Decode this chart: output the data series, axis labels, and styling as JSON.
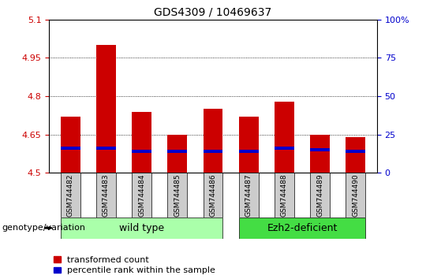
{
  "title": "GDS4309 / 10469637",
  "samples": [
    "GSM744482",
    "GSM744483",
    "GSM744484",
    "GSM744485",
    "GSM744486",
    "GSM744487",
    "GSM744488",
    "GSM744489",
    "GSM744490"
  ],
  "transformed_count": [
    4.72,
    5.0,
    4.74,
    4.65,
    4.75,
    4.72,
    4.78,
    4.65,
    4.64
  ],
  "percentile_rank": [
    16,
    16,
    14,
    14,
    14,
    14,
    16,
    15,
    14
  ],
  "bar_bottom": 4.5,
  "ylim": [
    4.5,
    5.1
  ],
  "right_ylim": [
    0,
    100
  ],
  "right_yticks": [
    0,
    25,
    50,
    75,
    100
  ],
  "right_yticklabels": [
    "0",
    "25",
    "50",
    "75",
    "100%"
  ],
  "left_yticks": [
    4.5,
    4.65,
    4.8,
    4.95,
    5.1
  ],
  "left_yticklabels": [
    "4.5",
    "4.65",
    "4.8",
    "4.95",
    "5.1"
  ],
  "red_color": "#cc0000",
  "blue_color": "#0000cc",
  "grid_color": "#000000",
  "left_tick_color": "#cc0000",
  "right_tick_color": "#0000cc",
  "bar_width": 0.55,
  "groups": [
    {
      "label": "wild type",
      "samples": [
        "GSM744482",
        "GSM744483",
        "GSM744484",
        "GSM744485",
        "GSM744486"
      ],
      "color": "#aaffaa"
    },
    {
      "label": "Ezh2-deficient",
      "samples": [
        "GSM744487",
        "GSM744488",
        "GSM744489",
        "GSM744490"
      ],
      "color": "#44dd44"
    }
  ],
  "xlabel_group": "genotype/variation",
  "legend_items": [
    {
      "color": "#cc0000",
      "label": "transformed count"
    },
    {
      "color": "#0000cc",
      "label": "percentile rank within the sample"
    }
  ],
  "plot_bg": "#ffffff",
  "xticklabel_bg": "#cccccc",
  "title_fontsize": 10,
  "tick_fontsize": 8,
  "group_fontsize": 9,
  "legend_fontsize": 8,
  "sample_label_fontsize": 6.5
}
